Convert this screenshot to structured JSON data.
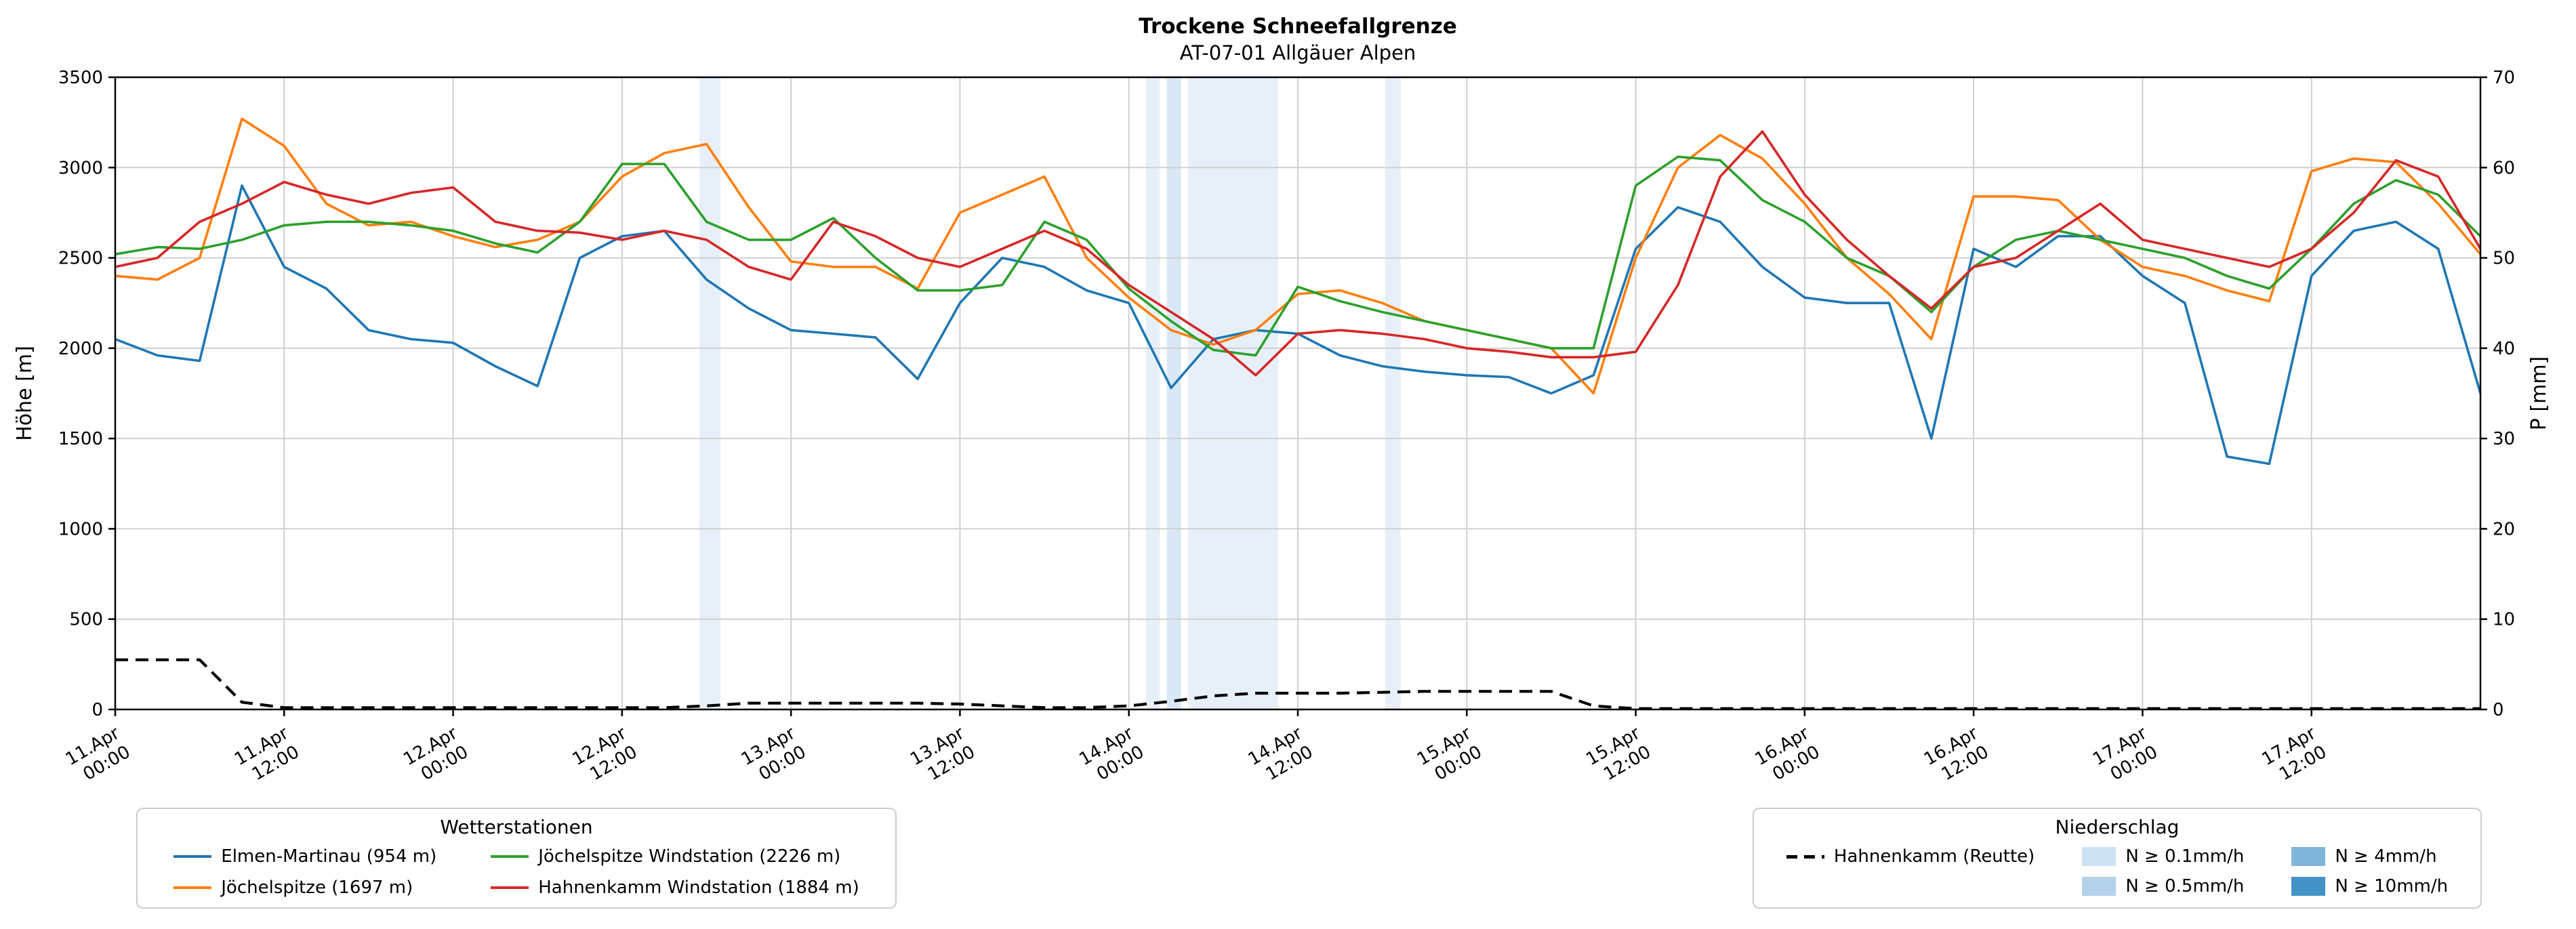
{
  "legend_stations": {
    "title": "Wetterstationen",
    "items": [
      {
        "label": "Elmen-Martinau (954 m)",
        "color": "#1f77b4"
      },
      {
        "label": "Jöchelspitze (1697 m)",
        "color": "#ff7f0e"
      },
      {
        "label": "Jöchelspitze Windstation (2226 m)",
        "color": "#2ca02c"
      },
      {
        "label": "Hahnenkamm Windstation (1884 m)",
        "color": "#d62728"
      }
    ]
  },
  "legend_precip": {
    "title": "Niederschlag",
    "dashed_label": "Hahnenkamm (Reutte)",
    "dashed_color": "#000000",
    "patches": [
      {
        "label": "N ≥ 0.1mm/h",
        "color": "#cfe2f3"
      },
      {
        "label": "N ≥ 0.5mm/h",
        "color": "#b4d1ea"
      },
      {
        "label": "N ≥ 4mm/h",
        "color": "#82b5dc"
      },
      {
        "label": "N ≥ 10mm/h",
        "color": "#4292c6"
      }
    ]
  },
  "chart_data": {
    "type": "line",
    "title": "Trockene Schneefallgrenze",
    "subtitle": "AT-07-01 Allgäuer Alpen",
    "grid": true,
    "legend_position": "bottom",
    "x": {
      "unit": "hours since 11.Apr 00:00",
      "max_h": 168,
      "tick_hours": [
        0,
        12,
        24,
        36,
        48,
        60,
        72,
        84,
        96,
        108,
        120,
        132,
        144,
        156
      ],
      "tick_labels": [
        "11.Apr\n00:00",
        "11.Apr\n12:00",
        "12.Apr\n00:00",
        "12.Apr\n12:00",
        "13.Apr\n00:00",
        "13.Apr\n12:00",
        "14.Apr\n00:00",
        "14.Apr\n12:00",
        "15.Apr\n00:00",
        "15.Apr\n12:00",
        "16.Apr\n00:00",
        "16.Apr\n12:00",
        "17.Apr\n00:00",
        "17.Apr\n12:00"
      ]
    },
    "y_left": {
      "label": "Höhe [m]",
      "min": 0,
      "max": 3500,
      "ticks": [
        0,
        500,
        1000,
        1500,
        2000,
        2500,
        3000,
        3500
      ]
    },
    "y_right": {
      "label": "P [mm]",
      "min": 0,
      "max": 70,
      "ticks": [
        0,
        10,
        20,
        30,
        40,
        50,
        60,
        70
      ]
    },
    "x_hours": [
      0,
      3,
      6,
      9,
      12,
      15,
      18,
      21,
      24,
      27,
      30,
      33,
      36,
      39,
      42,
      45,
      48,
      51,
      54,
      57,
      60,
      63,
      66,
      69,
      72,
      75,
      78,
      81,
      84,
      87,
      90,
      93,
      96,
      99,
      102,
      105,
      108,
      111,
      114,
      117,
      120,
      123,
      126,
      129,
      132,
      135,
      138,
      141,
      144,
      147,
      150,
      153,
      156,
      159,
      162,
      165,
      168
    ],
    "series": [
      {
        "name": "Elmen-Martinau (954 m)",
        "color": "#1f77b4",
        "axis": "left",
        "style": "solid",
        "values": [
          2050,
          1960,
          1930,
          2900,
          2450,
          2330,
          2100,
          2050,
          2030,
          1900,
          1790,
          2500,
          2620,
          2650,
          2380,
          2220,
          2100,
          2080,
          2060,
          1830,
          2250,
          2500,
          2450,
          2320,
          2250,
          1780,
          2050,
          2100,
          2080,
          1960,
          1900,
          1870,
          1850,
          1840,
          1750,
          1850,
          2550,
          2780,
          2700,
          2450,
          2280,
          2250,
          2250,
          1500,
          2550,
          2450,
          2620,
          2620,
          2400,
          2250,
          1400,
          1360,
          2400,
          2650,
          2700,
          2550,
          1750
        ]
      },
      {
        "name": "Jöchelspitze (1697 m)",
        "color": "#ff7f0e",
        "axis": "left",
        "style": "solid",
        "values": [
          2400,
          2380,
          2500,
          3270,
          3120,
          2800,
          2680,
          2700,
          2620,
          2560,
          2600,
          2700,
          2950,
          3080,
          3130,
          2780,
          2480,
          2450,
          2450,
          2330,
          2750,
          2850,
          2950,
          2500,
          2280,
          2100,
          2020,
          2100,
          2300,
          2320,
          2250,
          2150,
          2100,
          2050,
          2000,
          1750,
          2500,
          3000,
          3180,
          3050,
          2800,
          2500,
          2300,
          2050,
          2840,
          2840,
          2820,
          2600,
          2450,
          2400,
          2320,
          2260,
          2980,
          3050,
          3030,
          2800,
          2520
        ]
      },
      {
        "name": "Jöchelspitze Windstation (2226 m)",
        "color": "#2ca02c",
        "axis": "left",
        "style": "solid",
        "values": [
          2520,
          2560,
          2550,
          2600,
          2680,
          2700,
          2700,
          2680,
          2650,
          2580,
          2530,
          2700,
          3020,
          3020,
          2700,
          2600,
          2600,
          2720,
          2500,
          2320,
          2320,
          2350,
          2700,
          2600,
          2330,
          2150,
          1990,
          1960,
          2340,
          2260,
          2200,
          2150,
          2100,
          2050,
          2000,
          2000,
          2900,
          3060,
          3040,
          2820,
          2700,
          2500,
          2400,
          2200,
          2450,
          2600,
          2650,
          2600,
          2550,
          2500,
          2400,
          2330,
          2550,
          2800,
          2930,
          2850,
          2620
        ]
      },
      {
        "name": "Hahnenkamm Windstation (1884 m)",
        "color": "#d62728",
        "axis": "left",
        "style": "solid",
        "values": [
          2450,
          2500,
          2700,
          2800,
          2920,
          2850,
          2800,
          2860,
          2890,
          2700,
          2650,
          2640,
          2600,
          2650,
          2600,
          2450,
          2380,
          2700,
          2620,
          2500,
          2450,
          2550,
          2650,
          2550,
          2350,
          2200,
          2050,
          1850,
          2080,
          2100,
          2080,
          2050,
          2000,
          1980,
          1950,
          1950,
          1980,
          2350,
          2950,
          3200,
          2850,
          2600,
          2400,
          2220,
          2450,
          2500,
          2650,
          2800,
          2600,
          2550,
          2500,
          2450,
          2550,
          2750,
          3040,
          2950,
          2550
        ]
      },
      {
        "name": "Hahnenkamm (Reutte)",
        "color": "#000000",
        "axis": "right",
        "style": "dashed",
        "values": [
          5.5,
          5.5,
          5.5,
          0.8,
          0.2,
          0.2,
          0.2,
          0.2,
          0.2,
          0.2,
          0.2,
          0.2,
          0.2,
          0.2,
          0.4,
          0.7,
          0.7,
          0.7,
          0.7,
          0.7,
          0.6,
          0.4,
          0.2,
          0.2,
          0.4,
          0.9,
          1.5,
          1.8,
          1.8,
          1.8,
          1.9,
          2.0,
          2.0,
          2.0,
          2.0,
          0.4,
          0.1,
          0.1,
          0.1,
          0.1,
          0.1,
          0.1,
          0.1,
          0.1,
          0.1,
          0.1,
          0.1,
          0.1,
          0.1,
          0.1,
          0.1,
          0.1,
          0.1,
          0.1,
          0.1,
          0.1,
          0.1
        ]
      }
    ],
    "precip_spans": [
      {
        "start_h": 41.5,
        "end_h": 43.0,
        "level": "N ≥ 0.1mm/h"
      },
      {
        "start_h": 73.2,
        "end_h": 74.2,
        "level": "N ≥ 0.1mm/h"
      },
      {
        "start_h": 74.7,
        "end_h": 75.7,
        "level": "N ≥ 0.5mm/h"
      },
      {
        "start_h": 76.2,
        "end_h": 82.6,
        "level": "N ≥ 0.1mm/h"
      },
      {
        "start_h": 90.2,
        "end_h": 91.3,
        "level": "N ≥ 0.1mm/h"
      }
    ]
  }
}
